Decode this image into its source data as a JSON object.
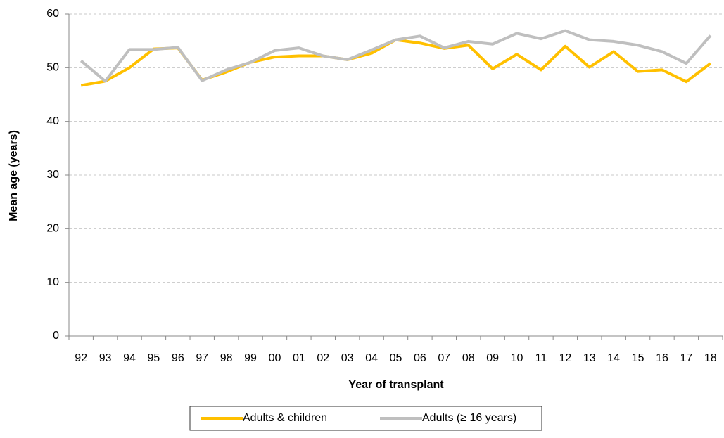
{
  "chart_data": {
    "type": "line",
    "x_label": "Year of transplant",
    "y_label": "Mean age (years)",
    "categories": [
      "92",
      "93",
      "94",
      "95",
      "96",
      "97",
      "98",
      "99",
      "00",
      "01",
      "02",
      "03",
      "04",
      "05",
      "06",
      "07",
      "08",
      "09",
      "10",
      "11",
      "12",
      "13",
      "14",
      "15",
      "16",
      "17",
      "18"
    ],
    "series": [
      {
        "name": "Adults & children",
        "color": "#ffc000",
        "values": [
          46.7,
          47.5,
          50,
          53.5,
          53.7,
          47.7,
          49.2,
          51,
          52,
          52.2,
          52.2,
          51.5,
          52.7,
          55.2,
          54.6,
          53.6,
          54.2,
          49.8,
          52.5,
          49.6,
          54,
          50.1,
          53,
          49.3,
          49.6,
          47.4,
          50.8
        ]
      },
      {
        "name": "Adults (≥ 16 years)",
        "color": "#bfbfbf",
        "values": [
          51.3,
          47.5,
          53.4,
          53.4,
          53.8,
          47.6,
          49.6,
          51,
          53.2,
          53.7,
          52.2,
          51.5,
          53.3,
          55.2,
          55.9,
          53.7,
          54.9,
          54.4,
          56.4,
          55.4,
          56.9,
          55.2,
          54.9,
          54.2,
          53,
          50.8,
          56
        ]
      }
    ],
    "ylim": [
      0,
      60
    ],
    "yticks": [
      0,
      10,
      20,
      30,
      40,
      50,
      60
    ],
    "grid": true
  }
}
